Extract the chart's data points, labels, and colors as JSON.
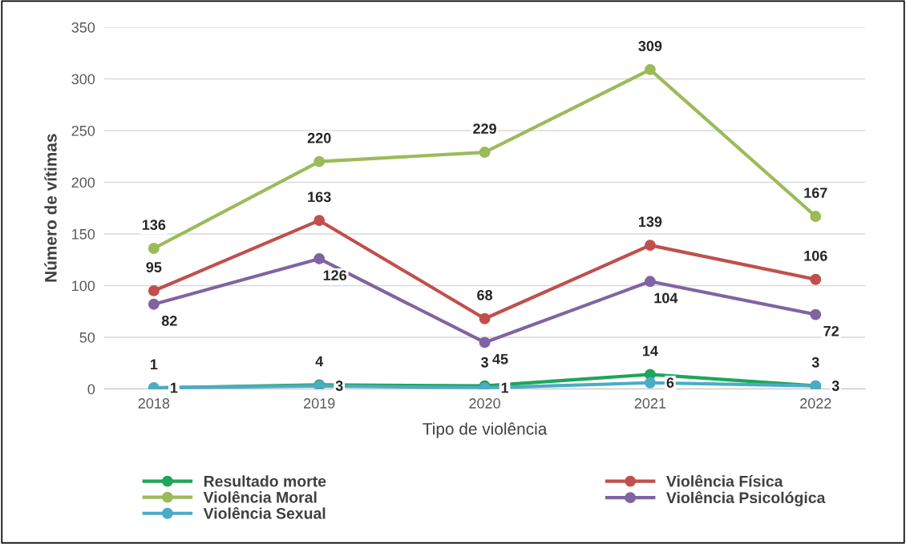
{
  "chart_data": {
    "type": "line",
    "xlabel": "Tipo de violência",
    "ylabel": "Número de vítimas",
    "categories": [
      "2018",
      "2019",
      "2020",
      "2021",
      "2022"
    ],
    "series": [
      {
        "name": "Resultado morte",
        "color": "#1fa65a",
        "values": [
          1,
          4,
          3,
          14,
          3
        ]
      },
      {
        "name": "Violência Física",
        "color": "#c0504d",
        "values": [
          95,
          163,
          68,
          139,
          106
        ]
      },
      {
        "name": "Violência Moral",
        "color": "#9bbb59",
        "values": [
          136,
          220,
          229,
          309,
          167
        ]
      },
      {
        "name": "Violência Psicológica",
        "color": "#8064a2",
        "values": [
          82,
          126,
          45,
          104,
          72
        ]
      },
      {
        "name": "Violência Sexual",
        "color": "#4bacc6",
        "values": [
          1,
          3,
          1,
          6,
          3
        ]
      }
    ],
    "ylim": [
      0,
      350
    ],
    "yticks": [
      0,
      50,
      100,
      150,
      200,
      250,
      300,
      350
    ],
    "grid": "y",
    "legend": "bottom",
    "marker": "circle",
    "line_style": "solid",
    "data_labels": true
  }
}
